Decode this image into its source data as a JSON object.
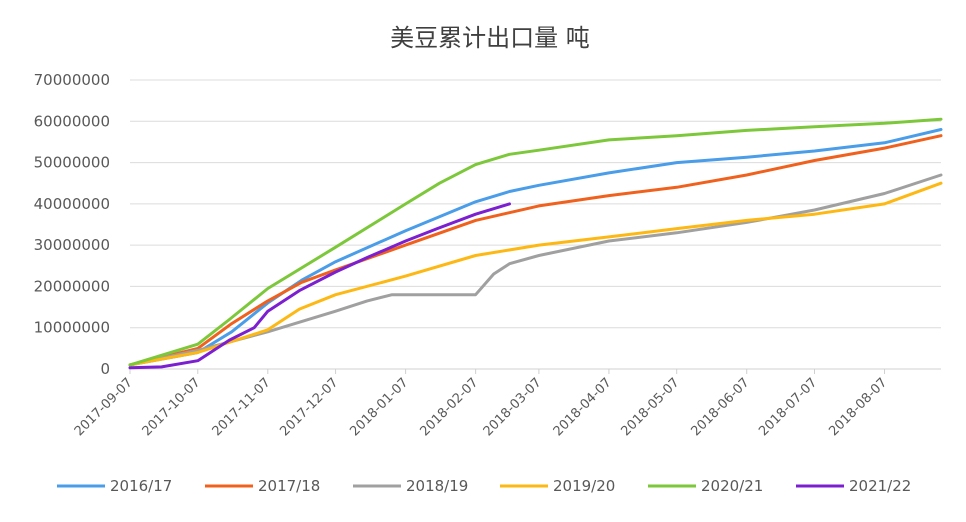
{
  "chart_data": {
    "type": "line",
    "title": "美豆累计出口量 吨",
    "xlabel": "",
    "ylabel": "",
    "ylim": [
      0,
      70000000
    ],
    "yticks": [
      "0",
      "10000000",
      "20000000",
      "30000000",
      "40000000",
      "50000000",
      "60000000",
      "70000000"
    ],
    "xrange": [
      "2017-09-07",
      "2018-09-01"
    ],
    "xticks": [
      "2017-09-07",
      "2017-10-07",
      "2017-11-07",
      "2017-12-07",
      "2018-01-07",
      "2018-02-07",
      "2018-03-07",
      "2018-04-07",
      "2018-05-07",
      "2018-06-07",
      "2018-07-07",
      "2018-08-07"
    ],
    "grid": true,
    "legend": "bottom",
    "series": [
      {
        "name": "2016/17",
        "color": "#4a9de8",
        "points": [
          [
            "2017-09-07",
            1000000
          ],
          [
            "2017-10-07",
            4000000
          ],
          [
            "2017-10-22",
            9000000
          ],
          [
            "2017-11-07",
            16000000
          ],
          [
            "2017-11-22",
            21500000
          ],
          [
            "2017-12-07",
            26000000
          ],
          [
            "2018-01-07",
            33500000
          ],
          [
            "2018-02-07",
            40500000
          ],
          [
            "2018-02-22",
            43000000
          ],
          [
            "2018-03-07",
            44500000
          ],
          [
            "2018-04-07",
            47500000
          ],
          [
            "2018-05-07",
            50000000
          ],
          [
            "2018-06-07",
            51300000
          ],
          [
            "2018-07-07",
            52800000
          ],
          [
            "2018-08-07",
            54800000
          ],
          [
            "2018-09-01",
            58000000
          ]
        ]
      },
      {
        "name": "2017/18",
        "color": "#f0611e",
        "points": [
          [
            "2017-09-07",
            1000000
          ],
          [
            "2017-10-07",
            5000000
          ],
          [
            "2017-10-22",
            11000000
          ],
          [
            "2017-11-07",
            16500000
          ],
          [
            "2017-11-22",
            21000000
          ],
          [
            "2017-12-07",
            24000000
          ],
          [
            "2018-01-07",
            30000000
          ],
          [
            "2018-02-07",
            36000000
          ],
          [
            "2018-03-07",
            39500000
          ],
          [
            "2018-04-07",
            42000000
          ],
          [
            "2018-05-07",
            44000000
          ],
          [
            "2018-06-07",
            47000000
          ],
          [
            "2018-07-07",
            50500000
          ],
          [
            "2018-08-07",
            53500000
          ],
          [
            "2018-09-01",
            56500000
          ]
        ]
      },
      {
        "name": "2018/19",
        "color": "#a0a0a0",
        "points": [
          [
            "2017-09-07",
            1000000
          ],
          [
            "2017-10-07",
            4500000
          ],
          [
            "2017-11-07",
            9000000
          ],
          [
            "2017-12-07",
            14000000
          ],
          [
            "2017-12-21",
            16500000
          ],
          [
            "2018-01-01",
            18000000
          ],
          [
            "2018-02-07",
            18000000
          ],
          [
            "2018-02-15",
            23000000
          ],
          [
            "2018-02-22",
            25500000
          ],
          [
            "2018-03-07",
            27500000
          ],
          [
            "2018-04-07",
            31000000
          ],
          [
            "2018-05-07",
            33000000
          ],
          [
            "2018-06-07",
            35500000
          ],
          [
            "2018-07-07",
            38500000
          ],
          [
            "2018-08-07",
            42500000
          ],
          [
            "2018-09-01",
            47000000
          ]
        ]
      },
      {
        "name": "2019/20",
        "color": "#fdb813",
        "points": [
          [
            "2017-09-07",
            1000000
          ],
          [
            "2017-10-07",
            4000000
          ],
          [
            "2017-11-07",
            9500000
          ],
          [
            "2017-11-21",
            14500000
          ],
          [
            "2017-12-07",
            18000000
          ],
          [
            "2018-01-07",
            22500000
          ],
          [
            "2018-02-07",
            27500000
          ],
          [
            "2018-03-07",
            30000000
          ],
          [
            "2018-04-07",
            32000000
          ],
          [
            "2018-05-07",
            34000000
          ],
          [
            "2018-06-07",
            36000000
          ],
          [
            "2018-07-07",
            37500000
          ],
          [
            "2018-08-07",
            40000000
          ],
          [
            "2018-09-01",
            45000000
          ]
        ]
      },
      {
        "name": "2020/21",
        "color": "#7cc83a",
        "points": [
          [
            "2017-09-07",
            1000000
          ],
          [
            "2017-10-07",
            6000000
          ],
          [
            "2017-10-21",
            12000000
          ],
          [
            "2017-11-07",
            19500000
          ],
          [
            "2017-12-07",
            29500000
          ],
          [
            "2018-01-07",
            40000000
          ],
          [
            "2018-01-22",
            45000000
          ],
          [
            "2018-02-07",
            49500000
          ],
          [
            "2018-02-22",
            52000000
          ],
          [
            "2018-03-07",
            53000000
          ],
          [
            "2018-04-07",
            55500000
          ],
          [
            "2018-05-07",
            56500000
          ],
          [
            "2018-06-07",
            57800000
          ],
          [
            "2018-07-07",
            58700000
          ],
          [
            "2018-08-07",
            59500000
          ],
          [
            "2018-09-01",
            60500000
          ]
        ]
      },
      {
        "name": "2021/22",
        "color": "#7b1fd0",
        "points": [
          [
            "2017-09-07",
            300000
          ],
          [
            "2017-09-21",
            500000
          ],
          [
            "2017-10-07",
            2000000
          ],
          [
            "2017-10-21",
            7000000
          ],
          [
            "2017-11-01",
            10000000
          ],
          [
            "2017-11-07",
            14000000
          ],
          [
            "2017-11-21",
            19000000
          ],
          [
            "2017-12-07",
            23500000
          ],
          [
            "2017-12-21",
            27000000
          ],
          [
            "2018-01-07",
            31000000
          ],
          [
            "2018-01-21",
            34000000
          ],
          [
            "2018-02-07",
            37500000
          ],
          [
            "2018-02-22",
            40000000
          ]
        ]
      }
    ]
  }
}
